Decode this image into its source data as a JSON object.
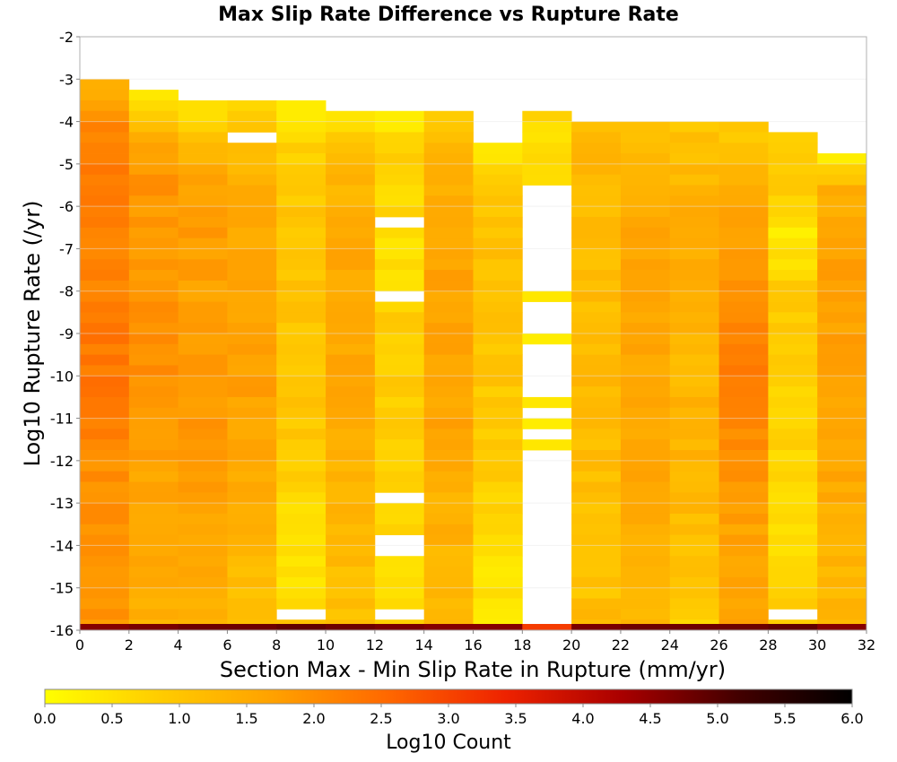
{
  "chart_data": {
    "type": "heatmap",
    "title": "Max Slip Rate Difference vs Rupture Rate",
    "xlabel": "Section Max - Min Slip Rate in Rupture (mm/yr)",
    "ylabel": "Log10 Rupture Rate (/yr)",
    "xlim": [
      0,
      32
    ],
    "ylim": [
      -16,
      -2
    ],
    "x_ticks": [
      0,
      2,
      4,
      6,
      8,
      10,
      12,
      14,
      16,
      18,
      20,
      22,
      24,
      26,
      28,
      30,
      32
    ],
    "y_ticks": [
      -2,
      -3,
      -4,
      -5,
      -6,
      -7,
      -8,
      -9,
      -10,
      -11,
      -12,
      -13,
      -14,
      -15,
      -16
    ],
    "x_bin_width": 2,
    "y_bin_height": 0.25,
    "colorbar": {
      "label": "Log10 Count",
      "min": 0.0,
      "max": 6.0,
      "ticks": [
        "0.0",
        "0.5",
        "1.0",
        "1.5",
        "2.0",
        "2.5",
        "3.0",
        "3.5",
        "4.0",
        "4.5",
        "5.0",
        "5.5",
        "6.0"
      ],
      "colors": [
        "#ffff00",
        "#ffcc00",
        "#ffa000",
        "#ff6600",
        "#ee2200",
        "#aa0000",
        "#440000",
        "#000000"
      ]
    },
    "columns": [
      {
        "x_start": 0,
        "y_top": -3.0,
        "anchors": [
          [
            -3.0,
            1.3
          ],
          [
            -3.75,
            2.0
          ],
          [
            -5.5,
            2.4
          ],
          [
            -7,
            2.1
          ],
          [
            -9,
            2.3
          ],
          [
            -10.5,
            2.3
          ],
          [
            -12,
            2.0
          ],
          [
            -14,
            1.9
          ],
          [
            -15.75,
            1.9
          ]
        ],
        "gaps": []
      },
      {
        "x_start": 2,
        "y_top": -3.25,
        "anchors": [
          [
            -3.25,
            0.3
          ],
          [
            -4,
            1.3
          ],
          [
            -5,
            1.9
          ],
          [
            -7,
            1.8
          ],
          [
            -9,
            2.0
          ],
          [
            -11,
            1.8
          ],
          [
            -12.5,
            1.6
          ],
          [
            -14,
            1.5
          ],
          [
            -15.75,
            1.4
          ]
        ],
        "gaps": []
      },
      {
        "x_start": 4,
        "y_top": -3.5,
        "anchors": [
          [
            -3.5,
            0.5
          ],
          [
            -4.25,
            1.1
          ],
          [
            -5,
            1.6
          ],
          [
            -6,
            1.8
          ],
          [
            -8,
            1.7
          ],
          [
            -10,
            1.9
          ],
          [
            -12,
            1.7
          ],
          [
            -14,
            1.6
          ],
          [
            -15.75,
            1.4
          ]
        ],
        "gaps": []
      },
      {
        "x_start": 6,
        "y_top": -3.5,
        "anchors": [
          [
            -3.5,
            0.6
          ],
          [
            -4.5,
            1.2
          ],
          [
            -6,
            1.5
          ],
          [
            -8,
            1.6
          ],
          [
            -10,
            1.7
          ],
          [
            -12,
            1.5
          ],
          [
            -14,
            1.3
          ],
          [
            -15.75,
            1.0
          ]
        ],
        "gaps": [
          -4.25
        ]
      },
      {
        "x_start": 8,
        "y_top": -3.5,
        "anchors": [
          [
            -3.5,
            0.3
          ],
          [
            -4.5,
            0.8
          ],
          [
            -6,
            1.0
          ],
          [
            -8,
            1.0
          ],
          [
            -10,
            1.0
          ],
          [
            -12,
            0.9
          ],
          [
            -13.5,
            0.5
          ],
          [
            -15,
            0.5
          ],
          [
            -15.75,
            0.9
          ]
        ],
        "gaps": [
          -15.5
        ]
      },
      {
        "x_start": 10,
        "y_top": -3.75,
        "anchors": [
          [
            -3.75,
            0.6
          ],
          [
            -4.5,
            1.0
          ],
          [
            -6,
            1.5
          ],
          [
            -8,
            1.6
          ],
          [
            -10,
            1.6
          ],
          [
            -12,
            1.4
          ],
          [
            -14,
            1.2
          ],
          [
            -15.75,
            1.1
          ]
        ],
        "gaps": []
      },
      {
        "x_start": 12,
        "y_top": -3.75,
        "anchors": [
          [
            -3.75,
            0.4
          ],
          [
            -5,
            0.8
          ],
          [
            -7,
            0.5
          ],
          [
            -9,
            0.9
          ],
          [
            -11,
            0.8
          ],
          [
            -13,
            0.7
          ],
          [
            -15,
            0.6
          ],
          [
            -15.75,
            0.8
          ]
        ],
        "gaps": [
          -6.25,
          -8.0,
          -12.75,
          -13.75,
          -14.0,
          -15.5
        ]
      },
      {
        "x_start": 14,
        "y_top": -3.75,
        "anchors": [
          [
            -3.75,
            1.0
          ],
          [
            -5,
            1.3
          ],
          [
            -7,
            1.6
          ],
          [
            -9,
            1.7
          ],
          [
            -11,
            1.6
          ],
          [
            -13,
            1.4
          ],
          [
            -15,
            1.3
          ],
          [
            -15.75,
            1.2
          ]
        ],
        "gaps": []
      },
      {
        "x_start": 16,
        "y_top": -4.5,
        "anchors": [
          [
            -4.5,
            0.4
          ],
          [
            -5.5,
            0.9
          ],
          [
            -7,
            1.1
          ],
          [
            -9,
            1.0
          ],
          [
            -11,
            0.9
          ],
          [
            -12.5,
            0.8
          ],
          [
            -14,
            0.5
          ],
          [
            -15.5,
            0.4
          ],
          [
            -15.75,
            0.4
          ]
        ],
        "gaps": []
      },
      {
        "x_start": 18,
        "y_top": -3.75,
        "anchors": [
          [
            -3.75,
            0.7
          ],
          [
            -5,
            0.5
          ]
        ],
        "gaps": [
          -5.5,
          -5.75,
          -6,
          -6.25,
          -6.5,
          -6.75,
          -7,
          -7.25,
          -7.5,
          -7.75,
          -8.25,
          -8.5,
          -8.75,
          -9.25,
          -9.5,
          -9.75,
          -10,
          -10.25,
          -10.75,
          -11.25,
          -11.75,
          -12,
          -12.25,
          -12.5,
          -12.75,
          -13,
          -13.25,
          -13.5,
          -13.75,
          -14,
          -14.25,
          -14.5,
          -14.75,
          -15,
          -15.25,
          -15.5,
          -15.75
        ],
        "extra": [
          [
            -8.0,
            0.4
          ],
          [
            -9.0,
            0.3
          ],
          [
            -10.5,
            0.4
          ],
          [
            -11.0,
            0.3
          ],
          [
            -11.5,
            0.4
          ]
        ]
      },
      {
        "x_start": 20,
        "y_top": -4.0,
        "anchors": [
          [
            -4.0,
            1.2
          ],
          [
            -5,
            1.3
          ],
          [
            -7,
            1.1
          ],
          [
            -9,
            1.2
          ],
          [
            -11,
            1.2
          ],
          [
            -13,
            1.1
          ],
          [
            -15,
            1.0
          ],
          [
            -15.75,
            1.3
          ]
        ],
        "gaps": []
      },
      {
        "x_start": 22,
        "y_top": -4.0,
        "anchors": [
          [
            -4.0,
            1.0
          ],
          [
            -6,
            1.6
          ],
          [
            -8,
            1.6
          ],
          [
            -10,
            1.6
          ],
          [
            -12,
            1.6
          ],
          [
            -14,
            1.4
          ],
          [
            -15.75,
            1.2
          ]
        ],
        "gaps": []
      },
      {
        "x_start": 24,
        "y_top": -4.0,
        "anchors": [
          [
            -4.0,
            1.0
          ],
          [
            -6,
            1.4
          ],
          [
            -8,
            1.5
          ],
          [
            -9.5,
            1.2
          ],
          [
            -11,
            1.4
          ],
          [
            -13,
            1.2
          ],
          [
            -15,
            0.9
          ],
          [
            -15.75,
            0.6
          ]
        ],
        "gaps": []
      },
      {
        "x_start": 26,
        "y_top": -4.0,
        "anchors": [
          [
            -4.0,
            0.9
          ],
          [
            -6,
            1.7
          ],
          [
            -8,
            1.9
          ],
          [
            -10,
            2.3
          ],
          [
            -12,
            1.9
          ],
          [
            -14,
            1.6
          ],
          [
            -15.75,
            1.6
          ]
        ],
        "gaps": []
      },
      {
        "x_start": 28,
        "y_top": -4.25,
        "anchors": [
          [
            -4.25,
            0.9
          ],
          [
            -5.5,
            1.0
          ],
          [
            -6.5,
            0.3
          ],
          [
            -8,
            0.9
          ],
          [
            -10,
            0.8
          ],
          [
            -12,
            0.7
          ],
          [
            -14,
            0.6
          ],
          [
            -15.75,
            0.8
          ]
        ],
        "gaps": [
          -15.5
        ]
      },
      {
        "x_start": 30,
        "y_top": -4.75,
        "anchors": [
          [
            -4.75,
            0.3
          ],
          [
            -5.5,
            1.4
          ],
          [
            -7.5,
            1.8
          ],
          [
            -10,
            1.6
          ],
          [
            -12,
            1.6
          ],
          [
            -14,
            1.3
          ],
          [
            -15.75,
            1.3
          ]
        ],
        "gaps": []
      }
    ],
    "bottom_row": {
      "y": -16.0,
      "values": [
        4.6,
        4.7,
        4.8,
        4.8,
        4.9,
        4.8,
        4.7,
        4.6,
        4.6,
        3.1,
        4.7,
        4.8,
        4.8,
        4.8,
        4.9,
        4.6
      ]
    }
  }
}
